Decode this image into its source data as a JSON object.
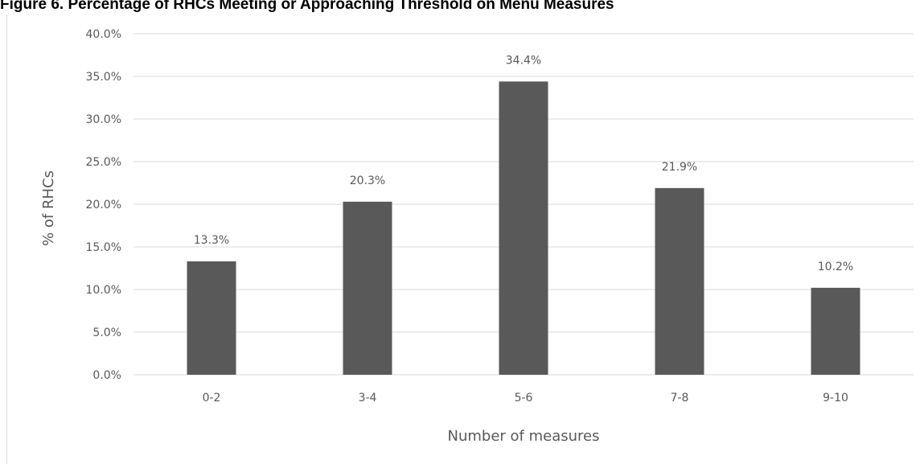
{
  "figure": {
    "title": "Figure 6. Percentage of RHCs Meeting or Approaching Threshold on Menu Measures"
  },
  "colors": {
    "bar": "#595959",
    "gridline": "#d9d9d9",
    "text": "#595959"
  },
  "chart_data": {
    "type": "bar",
    "title": "Figure 6. Percentage of RHCs Meeting or Approaching Threshold on Menu Measures",
    "categories": [
      "0-2",
      "3-4",
      "5-6",
      "7-8",
      "9-10"
    ],
    "values": [
      13.3,
      20.3,
      34.4,
      21.9,
      10.2
    ],
    "data_labels": [
      "13.3%",
      "20.3%",
      "34.4%",
      "21.9%",
      "10.2%"
    ],
    "xlabel": "Number of measures",
    "ylabel": "% of RHCs",
    "ylim": [
      0,
      40
    ],
    "yticks": [
      0,
      5,
      10,
      15,
      20,
      25,
      30,
      35,
      40
    ],
    "ytick_labels": [
      "0.0%",
      "5.0%",
      "10.0%",
      "15.0%",
      "20.0%",
      "25.0%",
      "30.0%",
      "35.0%",
      "40.0%"
    ],
    "grid": true,
    "legend": "none"
  }
}
